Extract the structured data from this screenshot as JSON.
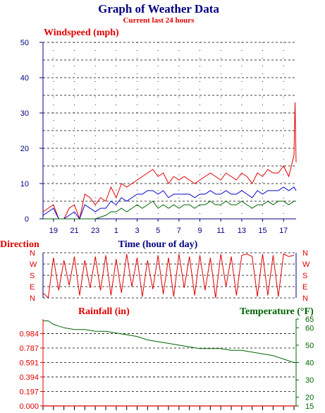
{
  "header": {
    "title": "Graph of Weather Data",
    "subtitle": "Current last 24 hours"
  },
  "colors": {
    "title": "#000080",
    "subtitle": "#e00000",
    "windspeed": "#e00000",
    "gust_blue": "#0000cc",
    "green": "#006400",
    "direction": "#e00000",
    "rainfall": "#e00000",
    "temperature": "#006400",
    "axis": "#000080"
  },
  "chart_data": [
    {
      "type": "line",
      "title": "",
      "ylabel": "Windspeed (mph)",
      "xlabel": "Time (hour of day)",
      "ylim": [
        0,
        50
      ],
      "yticks": [
        "0",
        "10",
        "20",
        "30",
        "40",
        "50"
      ],
      "xtick_labels": [
        "19",
        "21",
        "23",
        "1",
        "3",
        "5",
        "7",
        "9",
        "11",
        "13",
        "15",
        "17"
      ],
      "grid": true,
      "series": [
        {
          "color": "red",
          "x": [
            18.0,
            18.5,
            19.0,
            19.5,
            20.0,
            20.5,
            21.0,
            21.5,
            22.0,
            22.5,
            23.0,
            23.5,
            24.0,
            24.5,
            25.0,
            25.5,
            26.0,
            26.5,
            27.0,
            27.5,
            28.0,
            28.5,
            29.0,
            29.5,
            30.0,
            30.5,
            31.0,
            31.5,
            32.0,
            32.5,
            33.0,
            33.5,
            34.0,
            34.5,
            35.0,
            35.5,
            36.0,
            36.5,
            37.0,
            37.5,
            38.0,
            38.5,
            39.0,
            39.5,
            40.0,
            40.5,
            41.0,
            41.5,
            42.0,
            42.1,
            42.2
          ],
          "values": [
            2,
            3,
            4,
            0,
            0,
            3,
            4,
            0,
            7,
            6,
            4,
            6,
            5,
            9,
            6,
            10,
            9,
            10,
            11,
            12,
            13,
            14,
            12,
            13,
            10,
            12,
            11,
            12,
            11,
            10,
            11,
            12,
            13,
            12,
            11,
            13,
            12,
            11,
            13,
            12,
            10,
            13,
            12,
            14,
            13,
            13,
            15,
            12,
            18,
            33,
            16
          ]
        },
        {
          "color": "blue",
          "x": [
            18.0,
            18.5,
            19.0,
            19.5,
            20.0,
            20.5,
            21.0,
            21.5,
            22.0,
            22.5,
            23.0,
            23.5,
            24.0,
            24.5,
            25.0,
            25.5,
            26.0,
            26.5,
            27.0,
            27.5,
            28.0,
            28.5,
            29.0,
            29.5,
            30.0,
            30.5,
            31.0,
            31.5,
            32.0,
            32.5,
            33.0,
            33.5,
            34.0,
            34.5,
            35.0,
            35.5,
            36.0,
            36.5,
            37.0,
            37.5,
            38.0,
            38.5,
            39.0,
            39.5,
            40.0,
            40.5,
            41.0,
            41.5,
            42.0,
            42.2
          ],
          "values": [
            1,
            2,
            3,
            0,
            0,
            1,
            2,
            0,
            4,
            3,
            2,
            3,
            3,
            5,
            4,
            6,
            5,
            6,
            7,
            7,
            8,
            8,
            7,
            8,
            6,
            7,
            7,
            7,
            7,
            6,
            7,
            7,
            8,
            7,
            7,
            8,
            7,
            7,
            8,
            7,
            6,
            8,
            7,
            8,
            8,
            8,
            9,
            8,
            9,
            8
          ]
        },
        {
          "color": "green",
          "x": [
            18.0,
            19.0,
            20.0,
            21.0,
            22.0,
            23.0,
            24.0,
            24.5,
            25.0,
            25.5,
            26.0,
            26.5,
            27.0,
            27.5,
            28.0,
            28.5,
            29.0,
            29.5,
            30.0,
            30.5,
            31.0,
            31.5,
            32.0,
            32.5,
            33.0,
            33.5,
            34.0,
            34.5,
            35.0,
            35.5,
            36.0,
            36.5,
            37.0,
            37.5,
            38.0,
            38.5,
            39.0,
            39.5,
            40.0,
            40.5,
            41.0,
            41.5,
            42.0,
            42.2
          ],
          "values": [
            0,
            0,
            0,
            0,
            0,
            0,
            1,
            2,
            2,
            3,
            2,
            3,
            4,
            3,
            4,
            5,
            3,
            4,
            3,
            4,
            3,
            4,
            4,
            3,
            4,
            4,
            5,
            4,
            4,
            5,
            4,
            4,
            5,
            4,
            3,
            4,
            4,
            5,
            4,
            5,
            5,
            4,
            5,
            5
          ]
        }
      ]
    },
    {
      "type": "line",
      "title": "",
      "ylabel": "Direction",
      "categories_y": [
        "N",
        "W",
        "S",
        "E",
        "N"
      ],
      "grid": true,
      "x": [
        18.0,
        18.5,
        19.0,
        19.5,
        20.0,
        20.5,
        21.0,
        21.5,
        22.0,
        22.5,
        23.0,
        23.5,
        24.0,
        24.5,
        25.0,
        25.5,
        26.0,
        26.5,
        27.0,
        27.5,
        28.0,
        28.5,
        29.0,
        29.5,
        30.0,
        30.5,
        31.0,
        31.5,
        32.0,
        32.5,
        33.0,
        33.5,
        34.0,
        34.5,
        35.0,
        35.5,
        36.0,
        36.5,
        37.0,
        37.5,
        38.0,
        38.5,
        39.0,
        39.5,
        40.0,
        40.5,
        41.0,
        41.5,
        42.0
      ],
      "values": [
        40,
        0,
        320,
        60,
        300,
        100,
        330,
        20,
        300,
        80,
        330,
        60,
        340,
        20,
        310,
        40,
        350,
        90,
        320,
        10,
        300,
        70,
        340,
        30,
        320,
        10,
        350,
        80,
        330,
        20,
        340,
        60,
        320,
        0,
        350,
        90,
        330,
        20,
        340,
        350,
        330,
        10,
        350,
        20,
        340,
        10,
        350,
        330,
        340
      ]
    },
    {
      "type": "line",
      "title": "",
      "ylabel": "Rainfall (in)",
      "ylim": [
        0,
        1.18
      ],
      "yticks": [
        "0.000",
        "0.197",
        "0.394",
        "0.591",
        "0.787",
        "0.984"
      ],
      "series": [
        {
          "name": "Rainfall (in)",
          "color": "red",
          "x": [
            18.0,
            42.2
          ],
          "values": [
            0,
            0
          ]
        }
      ]
    },
    {
      "type": "line",
      "title": "",
      "ylabel": "Temperature (°F)",
      "ylim": [
        15,
        65
      ],
      "yticks": [
        "15",
        "20",
        "30",
        "40",
        "50",
        "60",
        "65"
      ],
      "series": [
        {
          "name": "Temperature (°F)",
          "color": "green",
          "x": [
            18.0,
            18.5,
            19.0,
            19.5,
            20.0,
            21.0,
            22.0,
            23.0,
            24.0,
            25.0,
            26.0,
            27.0,
            28.0,
            29.0,
            30.0,
            31.0,
            32.0,
            33.0,
            34.0,
            35.0,
            36.0,
            37.0,
            38.0,
            39.0,
            40.0,
            41.0,
            42.0,
            42.2
          ],
          "values": [
            64,
            64,
            62,
            61,
            60,
            59,
            59,
            58,
            58,
            57,
            56,
            55,
            53,
            52,
            51,
            50,
            49,
            48,
            48,
            48,
            47,
            47,
            46,
            45,
            44,
            42,
            40,
            40
          ]
        }
      ]
    }
  ]
}
